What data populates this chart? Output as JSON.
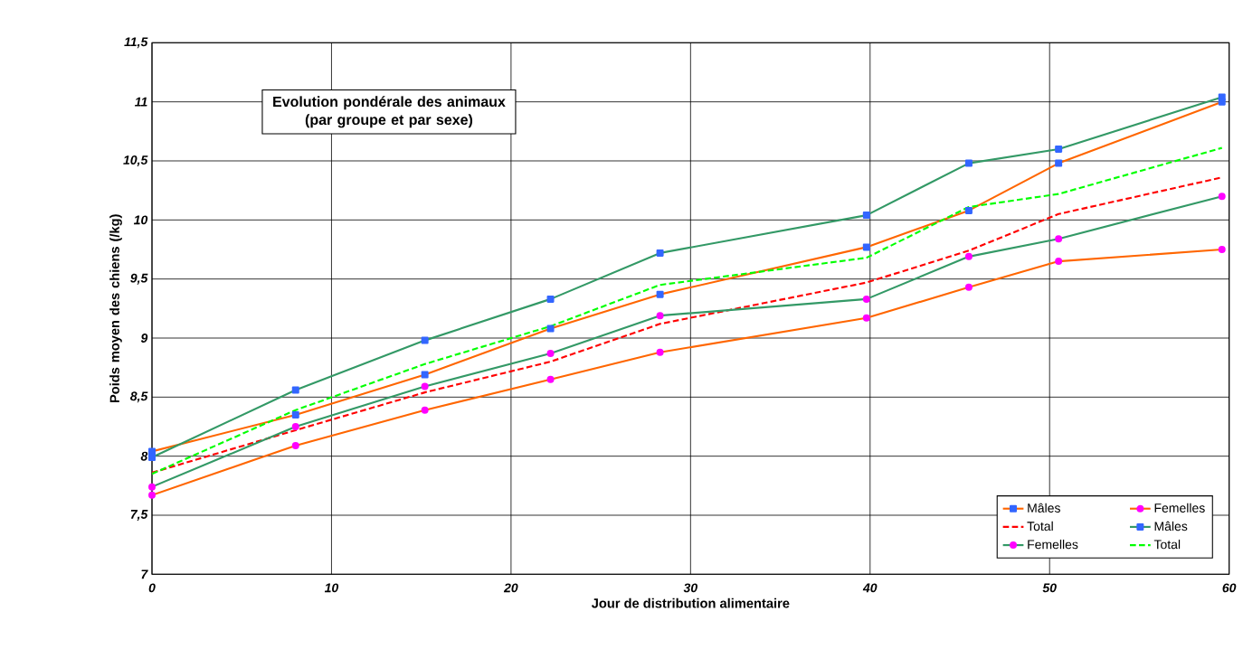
{
  "chart_data": {
    "type": "line",
    "title": "Evolution pondérale des animaux (par groupe et par sexe)",
    "xlabel": "Jour de distribution alimentaire",
    "ylabel": "Poids moyen des chiens (/kg)",
    "x": [
      0,
      8,
      15.2,
      22.2,
      28.3,
      39.8,
      45.5,
      50.5,
      59.6
    ],
    "series": [
      {
        "name": "Mâles",
        "color": "#ff6600",
        "marker": "square",
        "line_style": "solid",
        "values": [
          8.04,
          8.35,
          8.69,
          9.08,
          9.37,
          9.77,
          10.08,
          10.48,
          11.0
        ]
      },
      {
        "name": "Femelles",
        "color": "#ff6600",
        "marker": "circle",
        "line_style": "solid",
        "values": [
          7.67,
          8.09,
          8.39,
          8.65,
          8.88,
          9.17,
          9.43,
          9.65,
          9.75
        ]
      },
      {
        "name": "Total",
        "color": "#ff0000",
        "marker": "none",
        "line_style": "dashed",
        "values": [
          7.86,
          8.22,
          8.54,
          8.8,
          9.12,
          9.47,
          9.74,
          10.05,
          10.36
        ]
      },
      {
        "name": "Mâles",
        "color": "#339966",
        "marker": "square",
        "line_style": "solid",
        "values": [
          7.99,
          8.56,
          8.98,
          9.33,
          9.72,
          10.04,
          10.48,
          10.6,
          11.04
        ]
      },
      {
        "name": "Femelles",
        "color": "#339966",
        "marker": "circle",
        "line_style": "solid",
        "values": [
          7.74,
          8.25,
          8.59,
          8.87,
          9.19,
          9.33,
          9.69,
          9.84,
          10.2
        ]
      },
      {
        "name": "Total",
        "color": "#00ff00",
        "marker": "none",
        "line_style": "dashed",
        "values": [
          7.85,
          8.39,
          8.78,
          9.1,
          9.45,
          9.68,
          10.11,
          10.22,
          10.61
        ]
      }
    ],
    "xlim": [
      0,
      60
    ],
    "xticks": [
      0,
      10,
      20,
      30,
      40,
      50,
      60
    ],
    "ylim": [
      7,
      11.5
    ],
    "yticks": [
      7,
      {
        "value": 7.5,
        "label": "7,5"
      },
      8,
      {
        "value": 8.5,
        "label": "8,5"
      },
      9,
      {
        "value": 9.5,
        "label": "9,5"
      },
      10,
      {
        "value": 10.5,
        "label": "10,5"
      },
      11,
      {
        "value": 11.5,
        "label": "11,5"
      }
    ],
    "grid": true,
    "legend": "bottom right"
  }
}
